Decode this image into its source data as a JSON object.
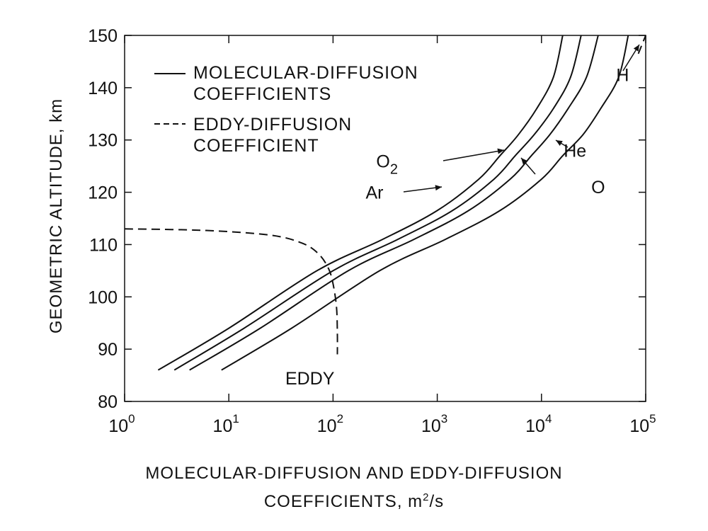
{
  "chart_data": {
    "type": "line",
    "xscale": "log",
    "xlim": [
      1,
      100000
    ],
    "ylim": [
      80,
      150
    ],
    "x_ticks": [
      {
        "base": "10",
        "exp": "0"
      },
      {
        "base": "10",
        "exp": "1"
      },
      {
        "base": "10",
        "exp": "2"
      },
      {
        "base": "10",
        "exp": "3"
      },
      {
        "base": "10",
        "exp": "4"
      },
      {
        "base": "10",
        "exp": "5"
      }
    ],
    "y_ticks": [
      "80",
      "90",
      "100",
      "110",
      "120",
      "130",
      "140",
      "150"
    ],
    "xlabel_line1": "MOLECULAR-DIFFUSION AND EDDY-DIFFUSION",
    "xlabel_line2_pre": "COEFFICIENTS, m",
    "xlabel_line2_sup": "2",
    "xlabel_line2_post": "/s",
    "ylabel": "GEOMETRIC ALTITUDE, km",
    "legend": {
      "placement": "top-left",
      "entries": [
        {
          "style": "solid",
          "line1": "MOLECULAR-DIFFUSION",
          "line2": "COEFFICIENTS"
        },
        {
          "style": "dashed",
          "line1": "EDDY-DIFFUSION",
          "line2": "COEFFICIENT"
        }
      ]
    },
    "series": [
      {
        "name": "Ar",
        "style": "solid",
        "x": [
          2.1,
          10,
          70,
          300,
          1000,
          2500,
          4000,
          6000,
          9000,
          13000,
          16000
        ],
        "y": [
          86,
          94,
          105,
          111,
          116.5,
          122.5,
          127,
          131,
          136,
          142,
          150
        ]
      },
      {
        "name": "O2",
        "style": "solid",
        "x": [
          3,
          14,
          100,
          420,
          1400,
          3500,
          5600,
          8500,
          13000,
          19000,
          24000
        ],
        "y": [
          86,
          94,
          105,
          111,
          116.5,
          122.5,
          127,
          131,
          136,
          142,
          150
        ]
      },
      {
        "name": "O",
        "style": "solid",
        "x": [
          4.2,
          20,
          140,
          600,
          2000,
          5000,
          8000,
          12000,
          18000,
          27000,
          35000
        ],
        "y": [
          86,
          94,
          105,
          111,
          116.5,
          122.5,
          127,
          131,
          136,
          142,
          150
        ]
      },
      {
        "name": "He",
        "style": "solid",
        "x": [
          8.5,
          40,
          280,
          1200,
          4000,
          10000,
          16000,
          25000,
          37000,
          55000,
          68000
        ],
        "y": [
          86,
          94,
          105,
          111,
          116.5,
          122.5,
          127,
          131,
          136,
          142,
          150
        ]
      },
      {
        "name": "H",
        "style": "dashed",
        "x": [
          85000,
          100000
        ],
        "y": [
          146.5,
          150
        ]
      },
      {
        "name": "EDDY",
        "style": "dashed",
        "x": [
          1,
          6,
          25,
          50,
          72,
          90,
          100,
          108,
          110,
          110
        ],
        "y": [
          113,
          112.7,
          111.8,
          110.3,
          108.3,
          105.5,
          102.5,
          98,
          93,
          89
        ]
      }
    ],
    "annotations": [
      {
        "text": "Ar",
        "x": 250,
        "y": 120
      },
      {
        "text": "O",
        "sub": "2",
        "x": 330,
        "y": 126
      },
      {
        "text": "He",
        "x": 21000,
        "y": 128
      },
      {
        "text": "O",
        "x": 35000,
        "y": 121
      },
      {
        "text": "H",
        "x": 60000,
        "y": 142.5
      },
      {
        "text": "EDDY",
        "x": 60,
        "y": 84.5
      }
    ]
  }
}
